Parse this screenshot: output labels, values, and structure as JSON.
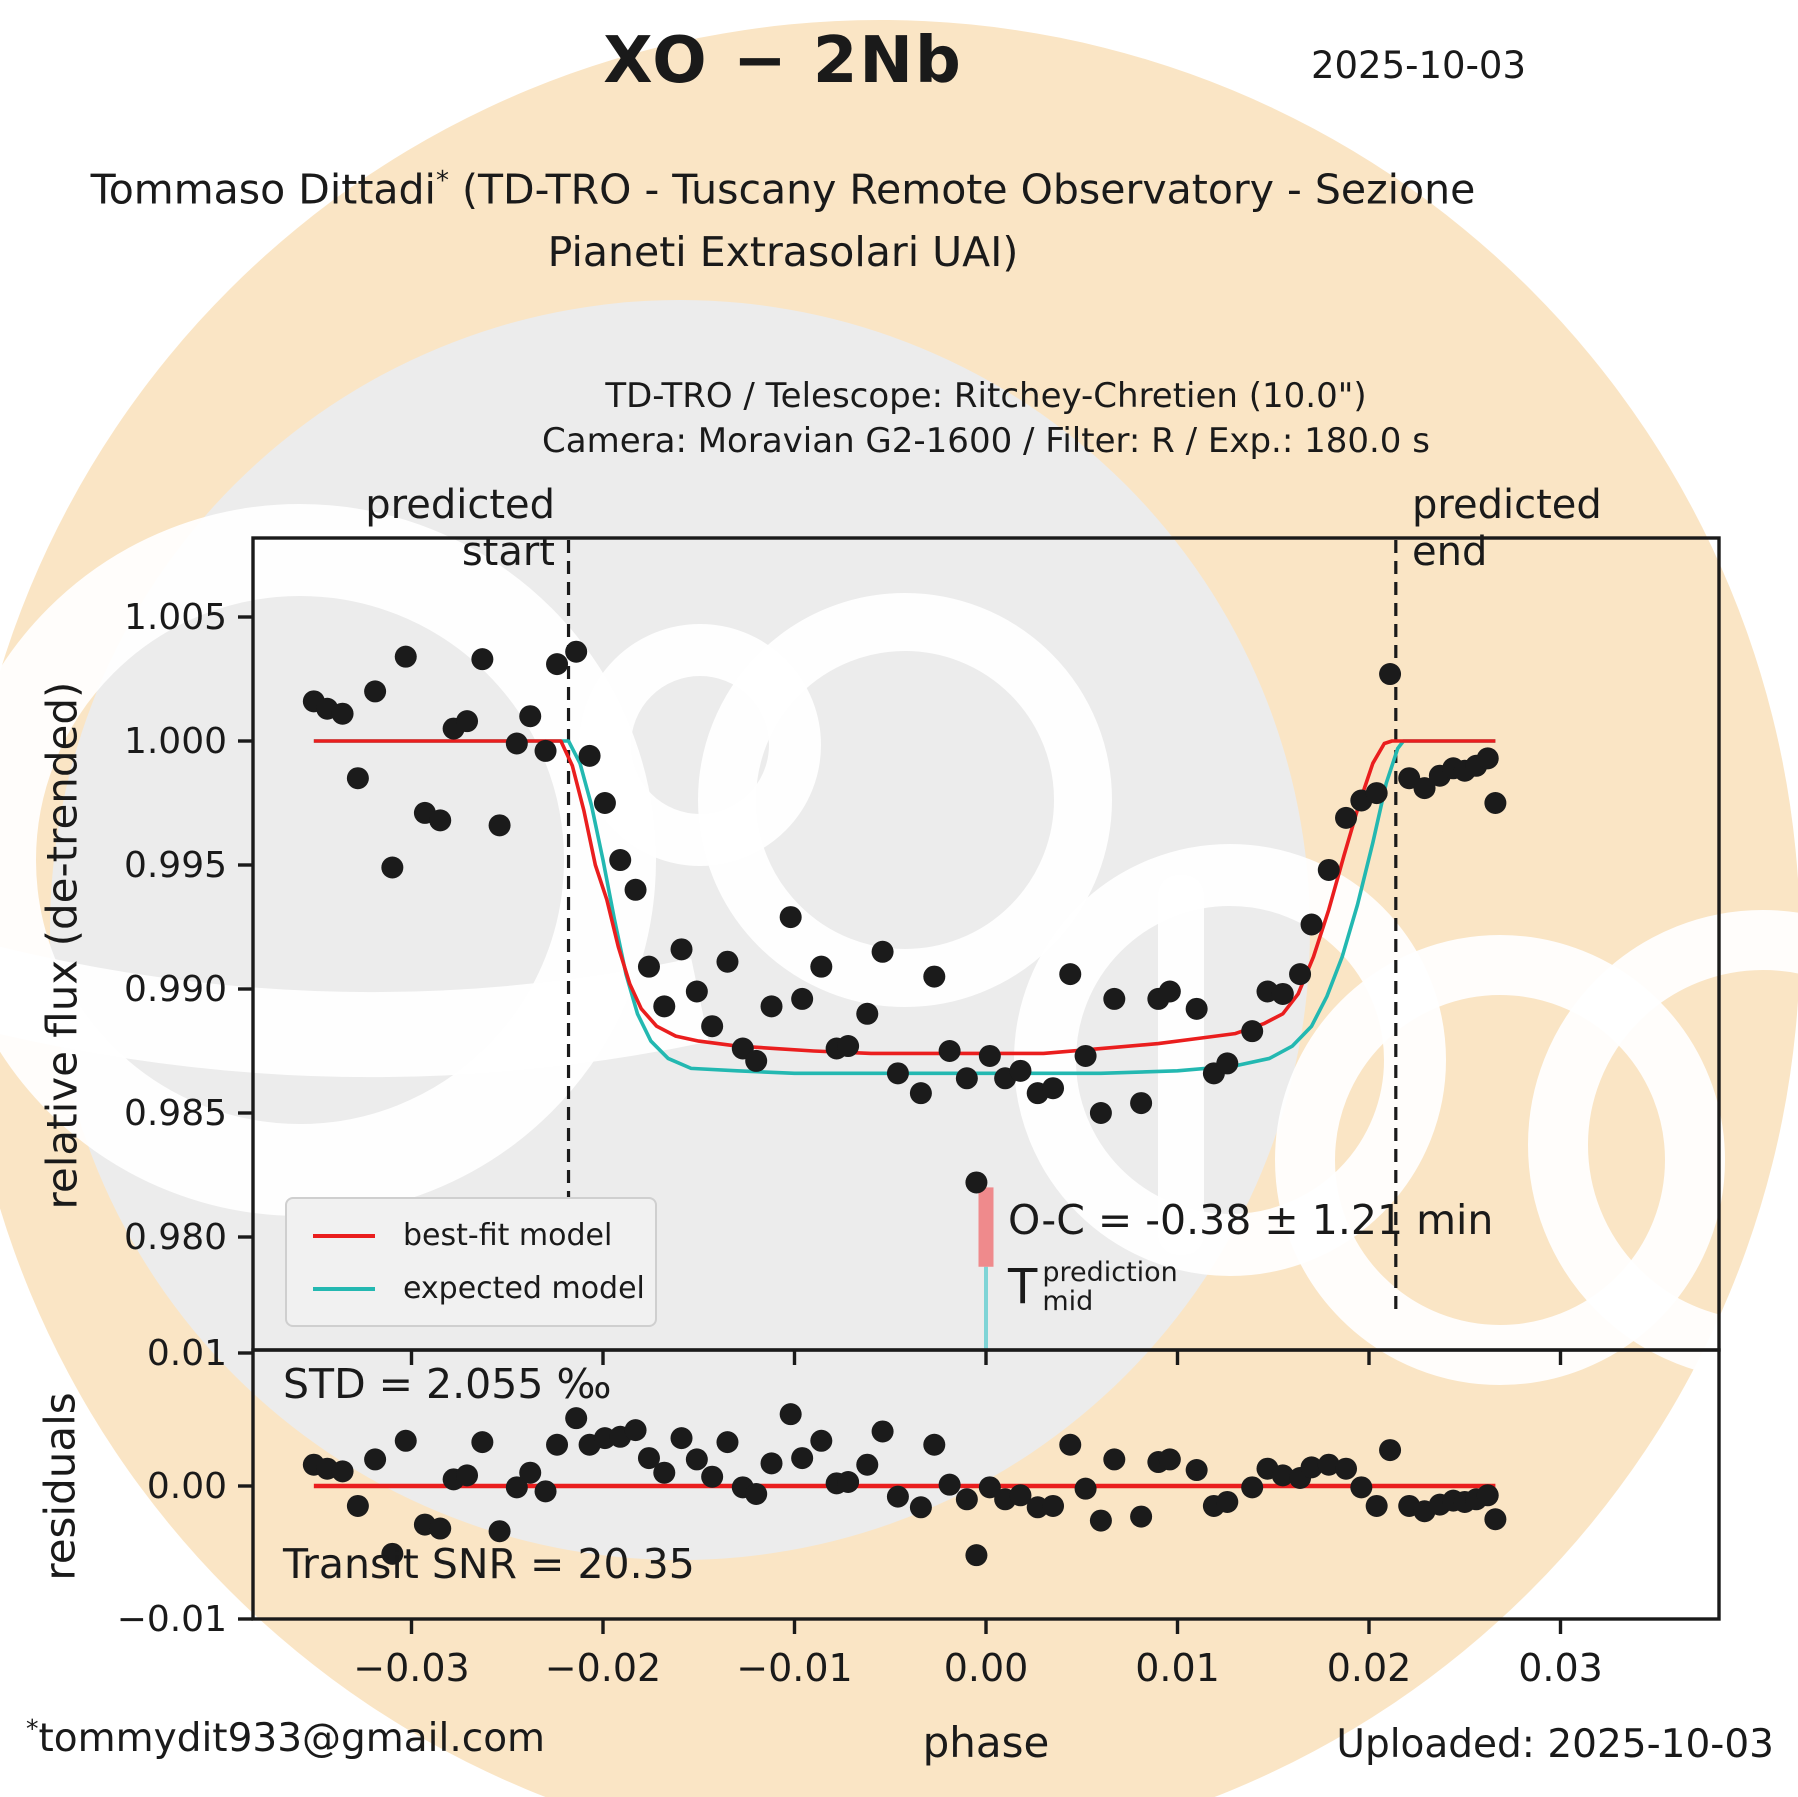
{
  "header": {
    "title": "XO − 2Nb",
    "date": "2025-10-03",
    "author_name": "Tommaso Dittadi",
    "author_sup": "*",
    "author_rest": " (TD-TRO - Tuscany Remote Observatory - Sezione",
    "author_line2": "Pianeti Extrasolari UAI)"
  },
  "plot_header": {
    "line1": "TD-TRO / Telescope: Ritchey-Chretien (10.0\")",
    "line2": "Camera: Moravian G2-1600 / Filter: R / Exp.: 180.0 s"
  },
  "annotations": {
    "predicted_start_line1": "predicted",
    "predicted_start_line2": "start",
    "predicted_end_line1": "predicted",
    "predicted_end_line2": "end",
    "oc": "O-C = -0.38 ± 1.21 min",
    "tmid_base": "T",
    "tmid_sup": "prediction",
    "tmid_sub": "mid",
    "std": "STD = 2.055 ‰",
    "snr": "Transit SNR = 20.35"
  },
  "legend": [
    {
      "label": "best-fit model",
      "color": "#ea1e1e"
    },
    {
      "label": "expected model",
      "color": "#23b8b1"
    }
  ],
  "axes": {
    "ylabel_main": "relative flux (de-trended)",
    "ylabel_residuals": "residuals",
    "xlabel": "phase",
    "x_ticks": [
      {
        "v": -0.03,
        "label": "−0.03"
      },
      {
        "v": -0.02,
        "label": "−0.02"
      },
      {
        "v": -0.01,
        "label": "−0.01"
      },
      {
        "v": 0.0,
        "label": "0.00"
      },
      {
        "v": 0.01,
        "label": "0.01"
      },
      {
        "v": 0.02,
        "label": "0.02"
      },
      {
        "v": 0.03,
        "label": "0.03"
      }
    ],
    "y_ticks_main": [
      {
        "v": 1.005,
        "label": "1.005"
      },
      {
        "v": 1.0,
        "label": "1.000"
      },
      {
        "v": 0.995,
        "label": "0.995"
      },
      {
        "v": 0.99,
        "label": "0.990"
      },
      {
        "v": 0.985,
        "label": "0.985"
      },
      {
        "v": 0.98,
        "label": "0.980"
      }
    ],
    "y_ticks_residuals": [
      {
        "v": 0.01,
        "label": "0.01"
      },
      {
        "v": 0.0,
        "label": "0.00"
      },
      {
        "v": -0.01,
        "label": "−0.01"
      }
    ]
  },
  "footer": {
    "email_sup": "*",
    "email": "tommydit933@gmail.com",
    "uploaded": "Uploaded: 2025-10-03"
  },
  "colors": {
    "best_fit": "#ea1e1e",
    "expected": "#23b8b1",
    "marker": "#1b1b1b",
    "tmid_bar": "#ef8a8c",
    "tmid_line": "#7fd4d6",
    "logo_orange": "#fae5c5",
    "logo_gray": "#ececec",
    "axis": "#1a1a1a"
  },
  "chart_data": {
    "type": "scatter",
    "title": "XO − 2Nb transit light curve",
    "xlabel": "phase",
    "ylabel_top": "relative flux (de-trended)",
    "ylabel_bottom": "residuals",
    "xlim": [
      -0.0383,
      0.0383
    ],
    "ylim_main": [
      0.9755,
      1.0082
    ],
    "ylim_residuals": [
      -0.01,
      0.01
    ],
    "predicted_start_phase": -0.0218,
    "predicted_end_phase": 0.0214,
    "oc_minutes": -0.38,
    "oc_err_minutes": 1.21,
    "std_permille": 2.055,
    "transit_snr": 20.35,
    "tmid_marker": {
      "phase": 0.0,
      "bar_flux_top": 0.982,
      "bar_flux_bottom": 0.9788,
      "line_flux_bottom": 0.9755
    },
    "residual_zero_line": {
      "x_start": -0.0351,
      "x_end": 0.0266,
      "y": 0.0
    },
    "points": [
      [
        -0.0351,
        1.0016,
        0.0016
      ],
      [
        -0.0344,
        1.0013,
        0.0013
      ],
      [
        -0.0336,
        1.0011,
        0.0011
      ],
      [
        -0.0328,
        0.9985,
        -0.0015
      ],
      [
        -0.0319,
        1.002,
        0.002
      ],
      [
        -0.031,
        0.9949,
        -0.0051
      ],
      [
        -0.0303,
        1.0034,
        0.0034
      ],
      [
        -0.0293,
        0.9971,
        -0.0029
      ],
      [
        -0.0285,
        0.9968,
        -0.0032
      ],
      [
        -0.0278,
        1.0005,
        0.0005
      ],
      [
        -0.0271,
        1.0008,
        0.0008
      ],
      [
        -0.0263,
        1.0033,
        0.0033
      ],
      [
        -0.0254,
        0.9966,
        -0.0034
      ],
      [
        -0.0245,
        0.9999,
        -0.0001
      ],
      [
        -0.0238,
        1.001,
        0.001
      ],
      [
        -0.023,
        0.9996,
        -0.0004
      ],
      [
        -0.0224,
        1.0031,
        0.0031
      ],
      [
        -0.0214,
        1.0036,
        0.0051
      ],
      [
        -0.0207,
        0.9994,
        0.0031
      ],
      [
        -0.0199,
        0.9975,
        0.0036
      ],
      [
        -0.0191,
        0.9952,
        0.0037
      ],
      [
        -0.0183,
        0.994,
        0.0042
      ],
      [
        -0.0176,
        0.9909,
        0.0021
      ],
      [
        -0.0168,
        0.9893,
        0.001
      ],
      [
        -0.0159,
        0.9916,
        0.0036
      ],
      [
        -0.0151,
        0.9899,
        0.002
      ],
      [
        -0.0143,
        0.9885,
        0.0007
      ],
      [
        -0.0135,
        0.9911,
        0.0033
      ],
      [
        -0.0127,
        0.9876,
        -0.0001
      ],
      [
        -0.012,
        0.9871,
        -0.0006
      ],
      [
        -0.0112,
        0.9893,
        0.0017
      ],
      [
        -0.0102,
        0.9929,
        0.0054
      ],
      [
        -0.0096,
        0.9896,
        0.0021
      ],
      [
        -0.0086,
        0.9909,
        0.0034
      ],
      [
        -0.0078,
        0.9876,
        0.0002
      ],
      [
        -0.0072,
        0.9877,
        0.0003
      ],
      [
        -0.0062,
        0.989,
        0.0016
      ],
      [
        -0.0054,
        0.9915,
        0.0041
      ],
      [
        -0.0046,
        0.9866,
        -0.0008
      ],
      [
        -0.0034,
        0.9858,
        -0.0016
      ],
      [
        -0.0027,
        0.9905,
        0.0031
      ],
      [
        -0.0019,
        0.9875,
        0.0001
      ],
      [
        -0.001,
        0.9864,
        -0.001
      ],
      [
        -0.0005,
        0.9822,
        -0.0052
      ],
      [
        0.0002,
        0.9873,
        -0.0001
      ],
      [
        0.001,
        0.9864,
        -0.001
      ],
      [
        0.0018,
        0.9867,
        -0.0007
      ],
      [
        0.0027,
        0.9858,
        -0.0016
      ],
      [
        0.0035,
        0.986,
        -0.0015
      ],
      [
        0.0044,
        0.9906,
        0.0031
      ],
      [
        0.0052,
        0.9873,
        -0.0002
      ],
      [
        0.006,
        0.985,
        -0.0026
      ],
      [
        0.0067,
        0.9896,
        0.002
      ],
      [
        0.0081,
        0.9854,
        -0.0023
      ],
      [
        0.009,
        0.9896,
        0.0018
      ],
      [
        0.0096,
        0.9899,
        0.002
      ],
      [
        0.011,
        0.9892,
        0.0012
      ],
      [
        0.0119,
        0.9866,
        -0.0015
      ],
      [
        0.0126,
        0.987,
        -0.0012
      ],
      [
        0.0139,
        0.9883,
        -0.0001
      ],
      [
        0.0147,
        0.9899,
        0.0013
      ],
      [
        0.0155,
        0.9898,
        0.0008
      ],
      [
        0.0164,
        0.9906,
        0.0006
      ],
      [
        0.017,
        0.9926,
        0.0014
      ],
      [
        0.0179,
        0.9948,
        0.0016
      ],
      [
        0.0188,
        0.9969,
        0.0013
      ],
      [
        0.0196,
        0.9976,
        -0.0001
      ],
      [
        0.0204,
        0.9979,
        -0.0015
      ],
      [
        0.0211,
        1.0027,
        0.0027
      ],
      [
        0.0221,
        0.9985,
        -0.0015
      ],
      [
        0.0229,
        0.9981,
        -0.0019
      ],
      [
        0.0237,
        0.9986,
        -0.0014
      ],
      [
        0.0244,
        0.9989,
        -0.0011
      ],
      [
        0.025,
        0.9988,
        -0.0012
      ],
      [
        0.0256,
        0.999,
        -0.001
      ],
      [
        0.0262,
        0.9993,
        -0.0007
      ],
      [
        0.0266,
        0.9975,
        -0.0025
      ]
    ],
    "models": {
      "best_fit": [
        [
          -0.0351,
          1.0
        ],
        [
          -0.0222,
          1.0
        ],
        [
          -0.0216,
          0.999
        ],
        [
          -0.021,
          0.9972
        ],
        [
          -0.0204,
          0.995
        ],
        [
          -0.0198,
          0.9936
        ],
        [
          -0.0192,
          0.9917
        ],
        [
          -0.0186,
          0.9902
        ],
        [
          -0.018,
          0.9892
        ],
        [
          -0.0172,
          0.9885
        ],
        [
          -0.0162,
          0.9881
        ],
        [
          -0.015,
          0.9879
        ],
        [
          -0.013,
          0.9877
        ],
        [
          -0.011,
          0.9876
        ],
        [
          -0.009,
          0.9875
        ],
        [
          -0.006,
          0.9874
        ],
        [
          -0.003,
          0.9874
        ],
        [
          0.0,
          0.9874
        ],
        [
          0.003,
          0.9874
        ],
        [
          0.006,
          0.9876
        ],
        [
          0.009,
          0.9878
        ],
        [
          0.011,
          0.988
        ],
        [
          0.013,
          0.9882
        ],
        [
          0.0145,
          0.9886
        ],
        [
          0.0155,
          0.989
        ],
        [
          0.0163,
          0.9898
        ],
        [
          0.0171,
          0.9913
        ],
        [
          0.0179,
          0.9932
        ],
        [
          0.0187,
          0.9954
        ],
        [
          0.0195,
          0.9975
        ],
        [
          0.0202,
          0.9991
        ],
        [
          0.0208,
          0.9999
        ],
        [
          0.0212,
          1.0
        ],
        [
          0.0266,
          1.0
        ]
      ],
      "expected": [
        [
          -0.0351,
          1.0
        ],
        [
          -0.0218,
          1.0
        ],
        [
          -0.0212,
          0.9991
        ],
        [
          -0.0206,
          0.9974
        ],
        [
          -0.02,
          0.9952
        ],
        [
          -0.0194,
          0.9928
        ],
        [
          -0.0188,
          0.9906
        ],
        [
          -0.0182,
          0.989
        ],
        [
          -0.0175,
          0.9879
        ],
        [
          -0.0166,
          0.9872
        ],
        [
          -0.0154,
          0.9868
        ],
        [
          -0.013,
          0.9867
        ],
        [
          -0.01,
          0.9866
        ],
        [
          -0.006,
          0.9866
        ],
        [
          0.0,
          0.9866
        ],
        [
          0.006,
          0.9866
        ],
        [
          0.01,
          0.9867
        ],
        [
          0.013,
          0.9869
        ],
        [
          0.0148,
          0.9872
        ],
        [
          0.016,
          0.9877
        ],
        [
          0.017,
          0.9885
        ],
        [
          0.0178,
          0.9897
        ],
        [
          0.0186,
          0.9913
        ],
        [
          0.0194,
          0.9934
        ],
        [
          0.0202,
          0.9959
        ],
        [
          0.0209,
          0.9983
        ],
        [
          0.0215,
          0.9997
        ],
        [
          0.0218,
          1.0
        ],
        [
          0.0266,
          1.0
        ]
      ]
    }
  }
}
